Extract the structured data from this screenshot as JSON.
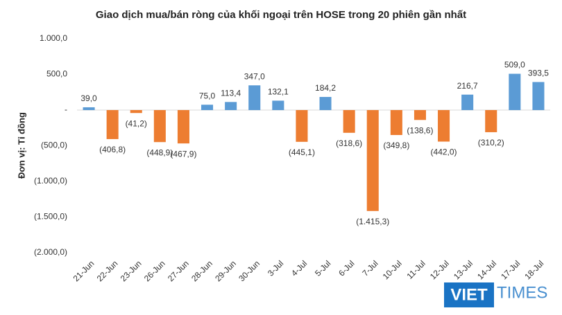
{
  "chart_data": {
    "type": "bar",
    "title": "Giao dịch mua/bán ròng của khối ngoại trên HOSE trong 20 phiên gần nhất",
    "y_label": "Đơn vị: Tỉ đồng",
    "categories": [
      "21-Jun",
      "22-Jun",
      "23-Jun",
      "26-Jun",
      "27-Jun",
      "28-Jun",
      "29-Jun",
      "30-Jun",
      "3-Jul",
      "4-Jul",
      "5-Jul",
      "6-Jul",
      "7-Jul",
      "10-Jul",
      "11-Jul",
      "12-Jul",
      "13-Jul",
      "14-Jul",
      "17-Jul",
      "18-Jul"
    ],
    "values": [
      39.0,
      -406.8,
      -41.2,
      -448.9,
      -467.9,
      75.0,
      113.4,
      347.0,
      132.1,
      -445.1,
      184.2,
      -318.6,
      -1415.3,
      -349.8,
      -138.6,
      -442.0,
      216.7,
      -310.2,
      509.0,
      393.5
    ],
    "value_labels": [
      "39,0",
      "(406,8)",
      "(41,2)",
      "(448,9)",
      "(467,9)",
      "75,0",
      "113,4",
      "347,0",
      "132,1",
      "(445,1)",
      "184,2",
      "(318,6)",
      "(1.415,3)",
      "(349,8)",
      "(138,6)",
      "(442,0)",
      "216,7",
      "(310,2)",
      "509,0",
      "393,5"
    ],
    "colors": {
      "positive": "#5b9bd5",
      "negative": "#ed7d31"
    },
    "ylim": [
      -2000,
      1000
    ],
    "yticks": [
      {
        "value": 1000,
        "label": "1.000,0"
      },
      {
        "value": 500,
        "label": "500,0"
      },
      {
        "value": 0,
        "label": "-"
      },
      {
        "value": -500,
        "label": "(500,0)"
      },
      {
        "value": -1000,
        "label": "(1.000,0)"
      },
      {
        "value": -1500,
        "label": "(1.500,0)"
      },
      {
        "value": -2000,
        "label": "(2.000,0)"
      }
    ],
    "grid": false,
    "logo": {
      "left": "VIET",
      "right": "TIMES"
    }
  }
}
